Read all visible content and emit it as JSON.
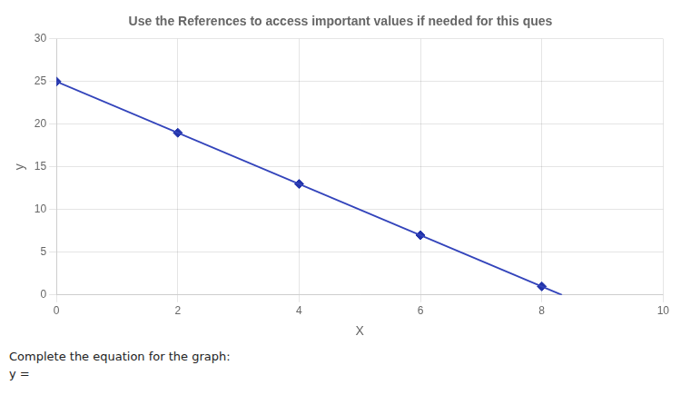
{
  "chart_data": {
    "type": "scatter",
    "title": "Use the References to access important values if needed for this ques",
    "xlabel": "X",
    "ylabel": "y",
    "xlim": [
      0,
      10
    ],
    "ylim": [
      0,
      30
    ],
    "xticks": [
      0,
      2,
      4,
      6,
      8,
      10
    ],
    "yticks": [
      0,
      5,
      10,
      15,
      20,
      25,
      30
    ],
    "grid": true,
    "annotations": [
      "Complete the equation for the graph:",
      "y ="
    ],
    "series": [
      {
        "type": "line",
        "color": "#3344bb",
        "x": [
          0,
          8.333333333333334
        ],
        "values": [
          25,
          0
        ]
      },
      {
        "type": "scatter",
        "color": "#2233aa",
        "marker": "diamond",
        "x": [
          0,
          2,
          4,
          6,
          8
        ],
        "values": [
          25,
          19,
          13,
          7,
          1
        ]
      }
    ]
  }
}
